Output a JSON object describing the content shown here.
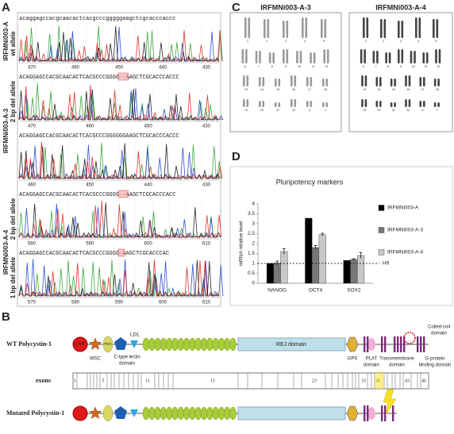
{
  "panel_labels": [
    "A",
    "B",
    "C",
    "D"
  ],
  "panel_a": {
    "strips": [
      {
        "sequence": [
          "acaggagccacgcaacactcacgcccgggggaagctcgcacccaccc"
        ],
        "positions": [
          "470",
          "460",
          "450",
          "440",
          "430"
        ]
      },
      {
        "sequence": [
          "ACAGGAGCCACGCAACACTCACGCCCGGGG",
          "--",
          "AAGCTCGCACCCACCC"
        ],
        "positions": [
          "470",
          "460",
          "450",
          "430"
        ]
      },
      {
        "sequence": [
          "ACAGGAGCCACGCAACACTCACGCCCGGGGGGAAGCTCGCACCCACCC"
        ],
        "positions": [
          "460",
          "450",
          "440",
          "430"
        ]
      },
      {
        "sequence": [
          "ACAGGAGCCACGCAACACTCACGCCCGGGG",
          "--",
          "AAGCTCGCACCCACC"
        ],
        "positions": [
          "580",
          "590",
          "600",
          "610"
        ]
      },
      {
        "sequence": [
          "ACAGGAGCCACGCAACACTCACGCCCGGGG",
          "-",
          "AAGCTCGCACCCAC"
        ],
        "positions": [
          "570",
          "580",
          "590",
          "600",
          "610"
        ]
      }
    ],
    "sample_labels": [
      "IRFMNi003-A",
      "IRFMNi003-A-3",
      "IRFMNi003-A-4"
    ],
    "allele_labels": [
      "wt allele",
      "2 bp del allele",
      "2 bp del allele",
      "1 bp del allele"
    ]
  },
  "panel_b": {
    "wt_label": "WT Polycystin-1",
    "mutated_label": "Mutated Polycystin-1",
    "exons_label": "exons",
    "domains": {
      "lrr": "LRR",
      "wsc": "WSC",
      "pkd": "PKD",
      "ldl": "LDL",
      "lectin": [
        "C-type lectin",
        "domain"
      ],
      "rej": "REJ domain",
      "gps": "GPS",
      "plat": [
        "PLAT",
        "domain"
      ],
      "transmembrane": [
        "Transmembrane",
        "domain"
      ],
      "coiled": [
        "Coiled-coil",
        "domain"
      ],
      "gprotein": [
        "G-protein",
        "binding domain"
      ]
    },
    "exon_numbers": [
      "1",
      "5",
      "11",
      "15",
      "23",
      "33",
      "36",
      "43",
      "46"
    ]
  },
  "panel_c": {
    "titles": [
      "IRFMNi003-A-3",
      "IRFMNi003-A-4"
    ],
    "chromosome_labels": [
      "1",
      "2",
      "3",
      "4",
      "5",
      "6",
      "7",
      "8",
      "9",
      "10",
      "11",
      "12",
      "13",
      "14",
      "15",
      "16",
      "17",
      "18",
      "19",
      "20",
      "21",
      "22",
      "X",
      "Y"
    ]
  },
  "chart_data": {
    "type": "bar",
    "title": "Pluripotency markers",
    "y_label": "mRNA relative level",
    "categories": [
      "NANOG",
      "OCT4",
      "SOX2"
    ],
    "series": [
      {
        "name": "IRFMNi003-A",
        "color": "#000000",
        "values": [
          1,
          3.28,
          1.15
        ]
      },
      {
        "name": "IRFMNi003-A-3",
        "color": "#777777",
        "values": [
          1.02,
          1.8,
          1.2
        ],
        "errors": [
          0.1,
          0.1,
          0.04
        ]
      },
      {
        "name": "IRFMNi003-A-4",
        "color": "#c8c8c8",
        "values": [
          1.6,
          2.45,
          1.4
        ],
        "errors": [
          0.15,
          0.07,
          0.15
        ]
      }
    ],
    "ylim": [
      0,
      4
    ],
    "yticks": [
      0,
      0.5,
      1,
      1.5,
      2,
      2.5,
      3,
      3.5,
      4
    ],
    "reference_line": {
      "value": 1,
      "label": "H9"
    },
    "legend": "right"
  }
}
